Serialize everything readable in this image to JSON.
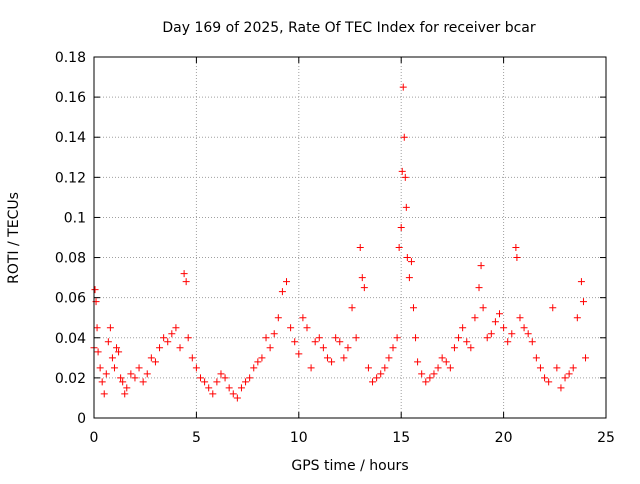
{
  "chart_data": {
    "type": "scatter",
    "title": "Day 169 of 2025, Rate Of TEC Index for receiver bcar",
    "xlabel": "GPS time / hours",
    "ylabel": "ROTI / TECUs",
    "xlim": [
      0,
      25
    ],
    "ylim": [
      0,
      0.18
    ],
    "xticks": [
      "0",
      "5",
      "10",
      "15",
      "20",
      "25"
    ],
    "yticks": [
      "0",
      "0.02",
      "0.04",
      "0.06",
      "0.08",
      "0.1",
      "0.12",
      "0.14",
      "0.16",
      "0.18"
    ],
    "grid": true,
    "marker": "+",
    "color": "#ff0000",
    "series": [
      {
        "values": [
          [
            0.0,
            0.035
          ],
          [
            0.05,
            0.064
          ],
          [
            0.1,
            0.058
          ],
          [
            0.15,
            0.045
          ],
          [
            0.2,
            0.033
          ],
          [
            0.3,
            0.025
          ],
          [
            0.4,
            0.018
          ],
          [
            0.5,
            0.012
          ],
          [
            0.6,
            0.022
          ],
          [
            0.7,
            0.038
          ],
          [
            0.8,
            0.045
          ],
          [
            0.9,
            0.03
          ],
          [
            1.0,
            0.025
          ],
          [
            1.1,
            0.035
          ],
          [
            1.2,
            0.033
          ],
          [
            1.3,
            0.02
          ],
          [
            1.4,
            0.018
          ],
          [
            1.5,
            0.012
          ],
          [
            1.6,
            0.015
          ],
          [
            1.8,
            0.022
          ],
          [
            2.0,
            0.02
          ],
          [
            2.2,
            0.025
          ],
          [
            2.4,
            0.018
          ],
          [
            2.6,
            0.022
          ],
          [
            2.8,
            0.03
          ],
          [
            3.0,
            0.028
          ],
          [
            3.2,
            0.035
          ],
          [
            3.4,
            0.04
          ],
          [
            3.6,
            0.038
          ],
          [
            3.8,
            0.042
          ],
          [
            4.0,
            0.045
          ],
          [
            4.2,
            0.035
          ],
          [
            4.4,
            0.072
          ],
          [
            4.5,
            0.068
          ],
          [
            4.6,
            0.04
          ],
          [
            4.8,
            0.03
          ],
          [
            5.0,
            0.025
          ],
          [
            5.2,
            0.02
          ],
          [
            5.4,
            0.018
          ],
          [
            5.6,
            0.015
          ],
          [
            5.8,
            0.012
          ],
          [
            6.0,
            0.018
          ],
          [
            6.2,
            0.022
          ],
          [
            6.4,
            0.02
          ],
          [
            6.6,
            0.015
          ],
          [
            6.8,
            0.012
          ],
          [
            7.0,
            0.01
          ],
          [
            7.2,
            0.015
          ],
          [
            7.4,
            0.018
          ],
          [
            7.6,
            0.02
          ],
          [
            7.8,
            0.025
          ],
          [
            8.0,
            0.028
          ],
          [
            8.2,
            0.03
          ],
          [
            8.4,
            0.04
          ],
          [
            8.6,
            0.035
          ],
          [
            8.8,
            0.042
          ],
          [
            9.0,
            0.05
          ],
          [
            9.2,
            0.063
          ],
          [
            9.4,
            0.068
          ],
          [
            9.6,
            0.045
          ],
          [
            9.8,
            0.038
          ],
          [
            10.0,
            0.032
          ],
          [
            10.2,
            0.05
          ],
          [
            10.4,
            0.045
          ],
          [
            10.6,
            0.025
          ],
          [
            10.8,
            0.038
          ],
          [
            11.0,
            0.04
          ],
          [
            11.2,
            0.035
          ],
          [
            11.4,
            0.03
          ],
          [
            11.6,
            0.028
          ],
          [
            11.8,
            0.04
          ],
          [
            12.0,
            0.038
          ],
          [
            12.2,
            0.03
          ],
          [
            12.4,
            0.035
          ],
          [
            12.6,
            0.055
          ],
          [
            12.8,
            0.04
          ],
          [
            13.0,
            0.085
          ],
          [
            13.1,
            0.07
          ],
          [
            13.2,
            0.065
          ],
          [
            13.4,
            0.025
          ],
          [
            13.6,
            0.018
          ],
          [
            13.8,
            0.02
          ],
          [
            14.0,
            0.022
          ],
          [
            14.2,
            0.025
          ],
          [
            14.4,
            0.03
          ],
          [
            14.6,
            0.035
          ],
          [
            14.8,
            0.04
          ],
          [
            14.9,
            0.085
          ],
          [
            15.0,
            0.095
          ],
          [
            15.05,
            0.123
          ],
          [
            15.1,
            0.165
          ],
          [
            15.15,
            0.14
          ],
          [
            15.2,
            0.12
          ],
          [
            15.25,
            0.105
          ],
          [
            15.3,
            0.08
          ],
          [
            15.4,
            0.07
          ],
          [
            15.5,
            0.078
          ],
          [
            15.6,
            0.055
          ],
          [
            15.7,
            0.04
          ],
          [
            15.8,
            0.028
          ],
          [
            16.0,
            0.022
          ],
          [
            16.2,
            0.018
          ],
          [
            16.4,
            0.02
          ],
          [
            16.6,
            0.022
          ],
          [
            16.8,
            0.025
          ],
          [
            17.0,
            0.03
          ],
          [
            17.2,
            0.028
          ],
          [
            17.4,
            0.025
          ],
          [
            17.6,
            0.035
          ],
          [
            17.8,
            0.04
          ],
          [
            18.0,
            0.045
          ],
          [
            18.2,
            0.038
          ],
          [
            18.4,
            0.035
          ],
          [
            18.6,
            0.05
          ],
          [
            18.8,
            0.065
          ],
          [
            18.9,
            0.076
          ],
          [
            19.0,
            0.055
          ],
          [
            19.2,
            0.04
          ],
          [
            19.4,
            0.042
          ],
          [
            19.6,
            0.048
          ],
          [
            19.8,
            0.052
          ],
          [
            20.0,
            0.045
          ],
          [
            20.2,
            0.038
          ],
          [
            20.4,
            0.042
          ],
          [
            20.6,
            0.085
          ],
          [
            20.65,
            0.08
          ],
          [
            20.8,
            0.05
          ],
          [
            21.0,
            0.045
          ],
          [
            21.2,
            0.042
          ],
          [
            21.4,
            0.038
          ],
          [
            21.6,
            0.03
          ],
          [
            21.8,
            0.025
          ],
          [
            22.0,
            0.02
          ],
          [
            22.2,
            0.018
          ],
          [
            22.4,
            0.055
          ],
          [
            22.6,
            0.025
          ],
          [
            22.8,
            0.015
          ],
          [
            23.0,
            0.02
          ],
          [
            23.2,
            0.022
          ],
          [
            23.4,
            0.025
          ],
          [
            23.6,
            0.05
          ],
          [
            23.8,
            0.068
          ],
          [
            23.9,
            0.058
          ],
          [
            24.0,
            0.03
          ]
        ]
      }
    ]
  }
}
